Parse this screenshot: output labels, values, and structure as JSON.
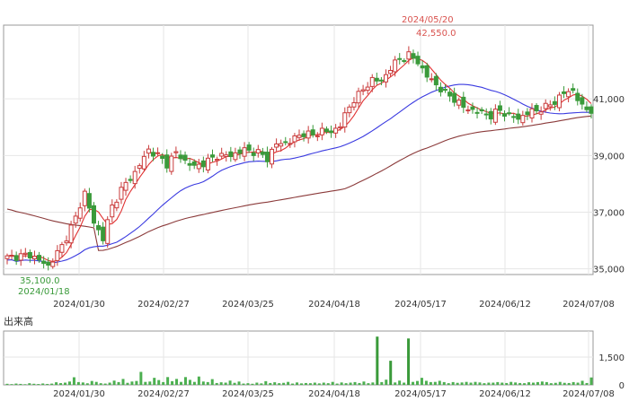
{
  "chart_data": {
    "type": "candlestick",
    "price_axis": {
      "range": [
        34800,
        43600
      ],
      "ticks": [
        35000,
        37000,
        39000,
        41000
      ],
      "tick_labels": [
        "35,000",
        "37,000",
        "39,000",
        "41,000"
      ]
    },
    "x_ticks": [
      "2024/01/30",
      "2024/02/27",
      "2024/03/25",
      "2024/04/18",
      "2024/05/17",
      "2024/06/12",
      "2024/07/08"
    ],
    "annotations": {
      "high_date": "2024/05/20",
      "high_value": "42,550.0",
      "low_value": "35,100.0",
      "low_date": "2024/01/18"
    },
    "volume": {
      "title": "出来高",
      "ticks": [
        0,
        1500
      ],
      "tick_labels": [
        "0",
        "1,500"
      ],
      "range": [
        0,
        2900
      ],
      "values": [
        58,
        40,
        70,
        52,
        35,
        88,
        60,
        45,
        75,
        50,
        68,
        140,
        95,
        120,
        180,
        410,
        150,
        130,
        85,
        210,
        160,
        90,
        70,
        120,
        230,
        150,
        320,
        110,
        180,
        210,
        700,
        160,
        180,
        380,
        260,
        150,
        420,
        200,
        320,
        160,
        420,
        270,
        160,
        450,
        180,
        150,
        310,
        100,
        140,
        120,
        230,
        110,
        180,
        70,
        90,
        60,
        120,
        80,
        200,
        100,
        140,
        90,
        110,
        160,
        70,
        130,
        80,
        100,
        90,
        120,
        80,
        120,
        90,
        160,
        70,
        130,
        90,
        120,
        150,
        100,
        180,
        90,
        130,
        2600,
        150,
        280,
        1300,
        130,
        230,
        120,
        2500,
        160,
        210,
        380,
        220,
        150,
        160,
        220,
        150,
        90,
        150,
        110,
        130,
        160,
        120,
        160,
        130,
        90,
        120,
        120,
        150,
        120,
        100,
        160,
        130,
        100,
        90,
        140,
        120,
        150,
        180,
        150,
        90,
        110,
        160,
        110,
        100,
        150,
        120,
        220,
        100,
        400
      ]
    }
  }
}
